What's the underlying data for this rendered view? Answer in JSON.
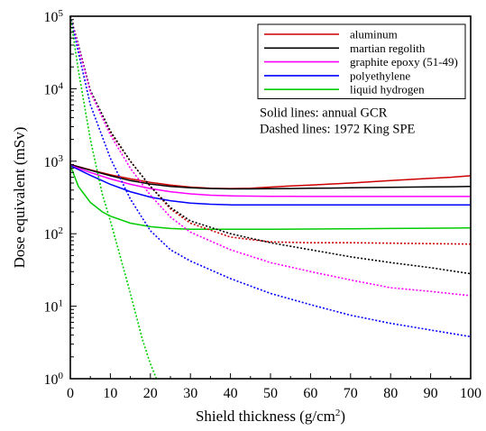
{
  "chart_data": {
    "type": "line",
    "xlabel": "Shield thickness (g/cm",
    "xlabel_superscript": "2",
    "xlabel_close": ")",
    "ylabel": "Dose equivalent (mSv)",
    "xlim": [
      0,
      100
    ],
    "ylim": [
      1,
      100000
    ],
    "yscale": "log",
    "grid": false,
    "legend_position": "top-right",
    "x_ticks": [
      "0",
      "10",
      "20",
      "30",
      "40",
      "50",
      "60",
      "70",
      "80",
      "90",
      "100"
    ],
    "y_ticks": [
      {
        "base": "10",
        "exp": "0"
      },
      {
        "base": "10",
        "exp": "1"
      },
      {
        "base": "10",
        "exp": "2"
      },
      {
        "base": "10",
        "exp": "3"
      },
      {
        "base": "10",
        "exp": "4"
      },
      {
        "base": "10",
        "exp": "5"
      }
    ],
    "notes": [
      "Solid lines: annual GCR",
      "Dashed lines: 1972 King SPE"
    ],
    "series": [
      {
        "name": "aluminum",
        "color": "#cc0000",
        "style": "solid",
        "x": [
          0,
          5,
          10,
          15,
          20,
          25,
          30,
          35,
          40,
          45,
          50,
          55,
          60,
          65,
          70,
          75,
          80,
          85,
          90,
          95,
          100
        ],
        "y": [
          900,
          760,
          650,
          570,
          510,
          470,
          440,
          425,
          420,
          425,
          440,
          455,
          470,
          485,
          500,
          520,
          540,
          560,
          580,
          600,
          630
        ]
      },
      {
        "name": "martian regolith",
        "color": "#000000",
        "style": "solid",
        "x": [
          0,
          5,
          10,
          15,
          20,
          25,
          30,
          35,
          40,
          45,
          50,
          55,
          60,
          65,
          70,
          75,
          80,
          85,
          90,
          95,
          100
        ],
        "y": [
          900,
          750,
          630,
          540,
          485,
          450,
          430,
          420,
          415,
          415,
          418,
          420,
          423,
          426,
          430,
          433,
          436,
          439,
          442,
          445,
          448
        ]
      },
      {
        "name": "graphite epoxy (51-49)",
        "color": "#ff00ff",
        "style": "solid",
        "x": [
          0,
          5,
          10,
          15,
          20,
          25,
          30,
          35,
          40,
          45,
          50,
          55,
          60,
          65,
          70,
          75,
          80,
          85,
          90,
          95,
          100
        ],
        "y": [
          880,
          700,
          570,
          480,
          420,
          380,
          355,
          340,
          333,
          330,
          328,
          327,
          326,
          326,
          326,
          326,
          326,
          326,
          326,
          326,
          326
        ]
      },
      {
        "name": "polyethylene",
        "color": "#0000ff",
        "style": "solid",
        "x": [
          0,
          5,
          10,
          15,
          20,
          25,
          30,
          35,
          40,
          45,
          50,
          55,
          60,
          65,
          70,
          75,
          80,
          85,
          90,
          95,
          100
        ],
        "y": [
          870,
          640,
          480,
          380,
          320,
          285,
          265,
          255,
          250,
          250,
          250,
          250,
          250,
          250,
          250,
          250,
          250,
          250,
          250,
          250,
          250
        ]
      },
      {
        "name": "liquid hydrogen",
        "color": "#00cc00",
        "style": "solid",
        "x": [
          0,
          2,
          5,
          8,
          10,
          15,
          20,
          25,
          30,
          35,
          40,
          50,
          60,
          70,
          80,
          90,
          100
        ],
        "y": [
          880,
          450,
          270,
          200,
          175,
          140,
          125,
          118,
          115,
          115,
          115,
          115,
          116,
          117,
          118,
          119,
          120
        ]
      },
      {
        "name": "aluminum",
        "color": "#cc0000",
        "style": "dashed",
        "x": [
          0,
          2,
          5,
          10,
          15,
          20,
          25,
          30,
          40,
          50,
          60,
          70,
          80,
          90,
          100
        ],
        "y": [
          100000,
          40000,
          9000,
          2500,
          1000,
          450,
          220,
          140,
          90,
          77,
          75,
          75,
          74,
          73,
          72
        ]
      },
      {
        "name": "martian regolith",
        "color": "#000000",
        "style": "dashed",
        "x": [
          0,
          2,
          5,
          10,
          15,
          20,
          25,
          30,
          40,
          50,
          60,
          70,
          80,
          90,
          100
        ],
        "y": [
          100000,
          40000,
          9500,
          2600,
          1000,
          450,
          230,
          150,
          100,
          75,
          60,
          48,
          40,
          34,
          28
        ]
      },
      {
        "name": "graphite epoxy (51-49)",
        "color": "#ff00ff",
        "style": "dashed",
        "x": [
          0,
          2,
          5,
          10,
          15,
          20,
          25,
          30,
          40,
          50,
          60,
          70,
          80,
          90,
          100
        ],
        "y": [
          100000,
          38000,
          9000,
          2300,
          800,
          340,
          170,
          105,
          60,
          40,
          30,
          23,
          18,
          16,
          14
        ]
      },
      {
        "name": "polyethylene",
        "color": "#0000ff",
        "style": "dashed",
        "x": [
          0,
          2,
          5,
          10,
          15,
          20,
          25,
          30,
          40,
          50,
          60,
          70,
          80,
          90,
          100
        ],
        "y": [
          100000,
          32000,
          6000,
          1100,
          300,
          110,
          60,
          42,
          24,
          15,
          10.5,
          7.5,
          5.8,
          4.7,
          3.8
        ]
      },
      {
        "name": "liquid hydrogen",
        "color": "#00cc00",
        "style": "dashed",
        "x": [
          0,
          2,
          5,
          8,
          10,
          12,
          15,
          18,
          20,
          21.5
        ],
        "y": [
          100000,
          18000,
          2000,
          350,
          150,
          60,
          15,
          3.5,
          1.6,
          1
        ]
      }
    ]
  }
}
